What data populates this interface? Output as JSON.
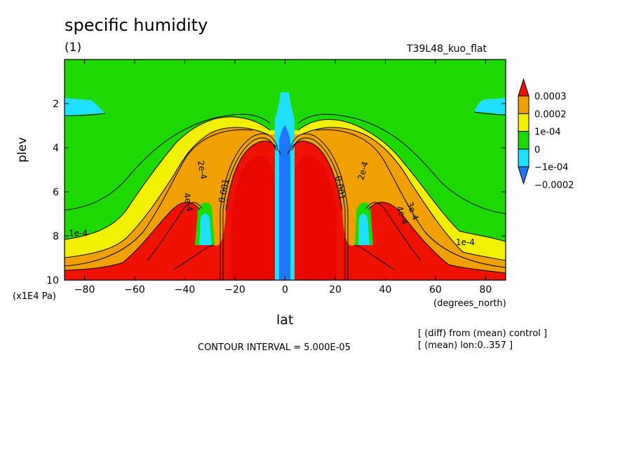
{
  "title": "specific humidity",
  "subtitle": "(1)",
  "run_label": "T39L48_kuo_flat",
  "contour_interval": "CONTOUR INTERVAL = 5.000E-05",
  "notes": [
    "[ (diff) from (mean) control ]",
    "[ (mean) lon:0..357 ]"
  ],
  "chart_data": {
    "type": "heatmap",
    "title": "specific humidity",
    "subtitle": "(1)",
    "xlabel": "lat",
    "x_unit": "(degrees_north)",
    "ylabel": "plev",
    "y_unit": "(x1E4 Pa)",
    "xlim": [
      -88,
      88
    ],
    "ylim": [
      10,
      0
    ],
    "y_inverted": true,
    "x_ticks": [
      -80,
      -60,
      -40,
      -20,
      0,
      20,
      40,
      60,
      80
    ],
    "x_tick_labels": [
      "−80",
      "−60",
      "−40",
      "−20",
      "0",
      "20",
      "40",
      "60",
      "80"
    ],
    "y_ticks": [
      2,
      4,
      6,
      8,
      10
    ],
    "y_tick_labels": [
      "2",
      "4",
      "6",
      "8",
      "10"
    ],
    "contour_interval": 5e-05,
    "contour_labels": [
      "1e-4",
      "2e-4",
      "4e-4",
      "3e-4",
      "0.001"
    ],
    "colorbar": {
      "levels": [
        -0.0002,
        -0.0001,
        0,
        0.0001,
        0.0002,
        0.0003
      ],
      "labels": [
        "−0.0002",
        "−1e-04",
        "0",
        "1e-04",
        "0.0002",
        "0.0003"
      ],
      "colors": [
        "#1e78ff",
        "#20e0ff",
        "#1ed900",
        "#f0f000",
        "#f0a000",
        "#ee1000"
      ],
      "extend": "both"
    },
    "field_description_regions": {
      "background": 0,
      "tropics_lower_troposphere": "> 0.0003",
      "equator_column": "-0.0001 to -0.0002",
      "subtropics_30deg_lower": "0 to -0.0001"
    }
  }
}
